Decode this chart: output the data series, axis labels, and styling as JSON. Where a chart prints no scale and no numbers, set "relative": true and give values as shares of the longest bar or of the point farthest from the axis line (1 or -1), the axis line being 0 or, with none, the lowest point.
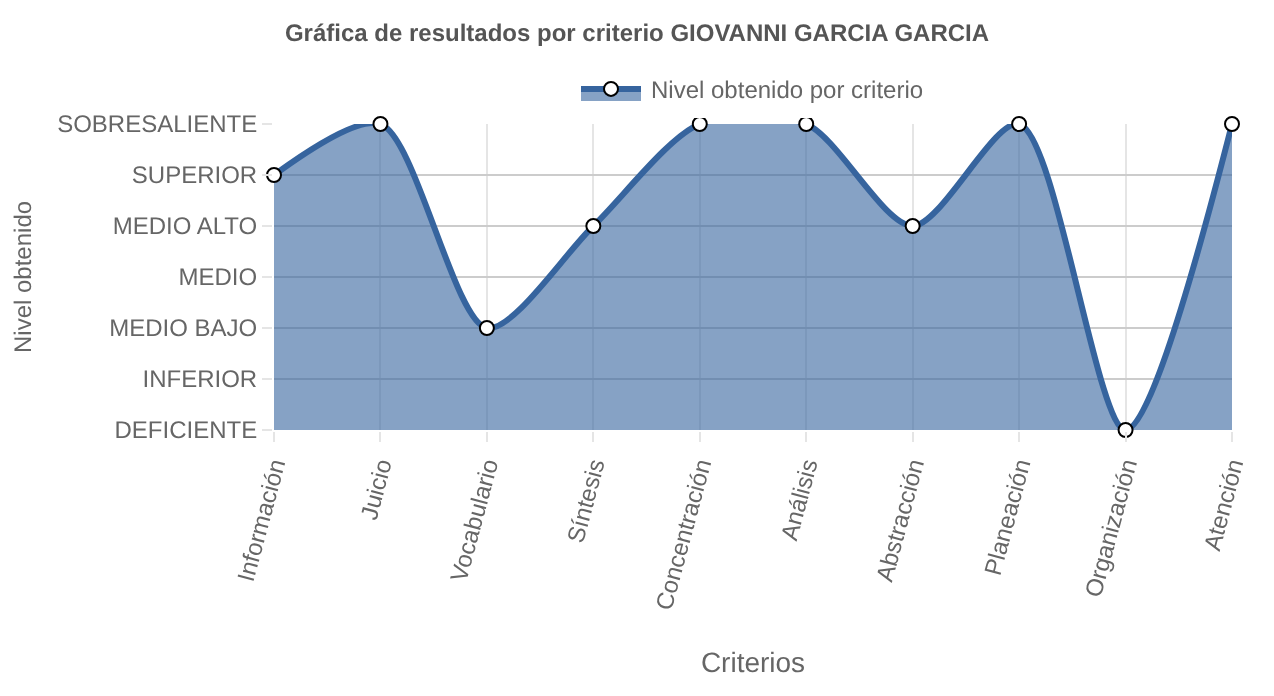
{
  "chart_data": {
    "type": "area",
    "title": "Gráfica de resultados por criterio GIOVANNI GARCIA GARCIA",
    "xlabel": "Criterios",
    "annotations": [
      "Nivel obtenido"
    ],
    "categories": [
      "Información",
      "Juicio",
      "Vocabulario",
      "Síntesis",
      "Concentración",
      "Análisis",
      "Abstracción",
      "Planeación",
      "Organización",
      "Atención"
    ],
    "series": [
      {
        "name": "Nivel obtenido por criterio",
        "color": "#36649e",
        "values": [
          0.8333,
          1,
          0.3333,
          0.6667,
          1,
          1,
          0.6667,
          1,
          0,
          1
        ]
      }
    ],
    "relative": true,
    "y_categories": [
      "SOBRESALIENTE",
      "SUPERIOR",
      "MEDIO ALTO",
      "MEDIO",
      "MEDIO BAJO",
      "INFERIOR",
      "DEFICIENTE"
    ],
    "grid": true,
    "legend": "top",
    "marker": "circle",
    "line_style": "solid"
  }
}
